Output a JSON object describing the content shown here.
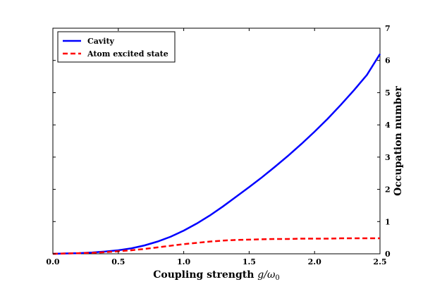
{
  "chart_data": {
    "type": "line",
    "title": "",
    "xlabel": "Coupling strength g/ω₀",
    "xlabel_prefix": "Coupling strength ",
    "xlabel_math": "g/ω",
    "xlabel_sub": "0",
    "ylabel": "Occupation number",
    "ylabel_side": "right",
    "xlim": [
      0.0,
      2.5
    ],
    "ylim": [
      0,
      7
    ],
    "x_ticks": [
      "0.0",
      "0.5",
      "1.0",
      "1.5",
      "2.0",
      "2.5"
    ],
    "y_ticks": [
      "0",
      "1",
      "2",
      "3",
      "4",
      "5",
      "6",
      "7"
    ],
    "grid": false,
    "legend_position": "top-left",
    "series": [
      {
        "name": "Cavity",
        "color": "#0000ff",
        "style": "solid",
        "x": [
          0.0,
          0.1,
          0.2,
          0.3,
          0.4,
          0.5,
          0.6,
          0.7,
          0.8,
          0.9,
          1.0,
          1.1,
          1.2,
          1.3,
          1.4,
          1.5,
          1.6,
          1.7,
          1.8,
          1.9,
          2.0,
          2.1,
          2.2,
          2.3,
          2.4,
          2.5
        ],
        "y": [
          0.0,
          0.01,
          0.02,
          0.04,
          0.07,
          0.11,
          0.17,
          0.26,
          0.38,
          0.53,
          0.72,
          0.94,
          1.19,
          1.47,
          1.77,
          2.07,
          2.38,
          2.71,
          3.05,
          3.41,
          3.79,
          4.19,
          4.62,
          5.07,
          5.55,
          6.2
        ]
      },
      {
        "name": "Atom excited state",
        "color": "#ff0000",
        "style": "dashed",
        "x": [
          0.0,
          0.1,
          0.2,
          0.3,
          0.4,
          0.5,
          0.6,
          0.7,
          0.8,
          0.9,
          1.0,
          1.1,
          1.2,
          1.3,
          1.4,
          1.5,
          1.6,
          1.7,
          1.8,
          1.9,
          2.0,
          2.1,
          2.2,
          2.3,
          2.4,
          2.5
        ],
        "y": [
          0.0,
          0.01,
          0.02,
          0.03,
          0.05,
          0.08,
          0.11,
          0.15,
          0.2,
          0.25,
          0.3,
          0.34,
          0.38,
          0.41,
          0.43,
          0.44,
          0.45,
          0.46,
          0.46,
          0.47,
          0.47,
          0.47,
          0.48,
          0.48,
          0.48,
          0.48
        ]
      }
    ]
  }
}
